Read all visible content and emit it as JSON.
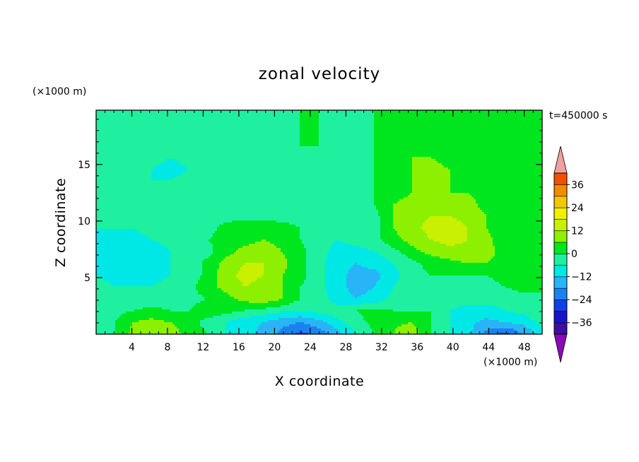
{
  "chart_data": {
    "type": "heatmap",
    "title": "zonal velocity",
    "xlabel": "X coordinate",
    "ylabel": "Z coordinate",
    "x_unit": "(×1000 m)",
    "y_unit": "(×1000 m)",
    "time_label": "t=450000 s",
    "xlim": [
      0,
      50
    ],
    "ylim": [
      0,
      19.8
    ],
    "x_ticks": [
      4,
      8,
      12,
      16,
      20,
      24,
      28,
      32,
      36,
      40,
      44,
      48
    ],
    "y_ticks": [
      5,
      10,
      15
    ],
    "colorbar": {
      "levels": [
        -42,
        -36,
        -30,
        -24,
        -18,
        -12,
        -6,
        0,
        6,
        12,
        18,
        24,
        30,
        36,
        42
      ],
      "tick_labels": [
        "36",
        "24",
        "12",
        "0",
        "−12",
        "−24",
        "−36"
      ],
      "tick_values": [
        36,
        24,
        12,
        0,
        -12,
        -24,
        -36
      ],
      "colors": [
        "#8a0ab4",
        "#3c10a0",
        "#1a14c8",
        "#1040e6",
        "#1a82f0",
        "#2ab4f8",
        "#00e8e6",
        "#1ef0a0",
        "#00e61e",
        "#8cf000",
        "#c8f000",
        "#f0f000",
        "#f0c800",
        "#f08c00",
        "#f05000",
        "#e61e1e",
        "#f0a0a0"
      ]
    },
    "field": {
      "nx": 25,
      "nz": 20,
      "values": [
        [
          -6,
          0,
          8,
          12,
          9,
          4,
          0,
          -6,
          -10,
          -14,
          -20,
          -26,
          -22,
          -14,
          -6,
          0,
          6,
          10,
          0,
          -6,
          -10,
          -20,
          -26,
          -18,
          -8
        ],
        [
          -6,
          0,
          6,
          8,
          6,
          2,
          -2,
          -6,
          -10,
          -12,
          -16,
          -18,
          -14,
          -8,
          -2,
          2,
          5,
          6,
          0,
          -6,
          -10,
          -14,
          -12,
          -10,
          -4
        ],
        [
          -4,
          -2,
          0,
          2,
          0,
          0,
          4,
          2,
          0,
          -2,
          -4,
          -6,
          -4,
          -2,
          0,
          2,
          0,
          0,
          0,
          -6,
          -8,
          -8,
          -6,
          -4,
          0
        ],
        [
          -2,
          -4,
          -4,
          -4,
          -4,
          -2,
          0,
          4,
          8,
          10,
          6,
          0,
          -2,
          -10,
          -12,
          -10,
          -4,
          -2,
          -2,
          -4,
          -4,
          -4,
          -4,
          -2,
          0
        ],
        [
          -4,
          -6,
          -6,
          -6,
          -4,
          -2,
          4,
          8,
          12,
          10,
          6,
          0,
          -4,
          -10,
          -14,
          -12,
          -6,
          -2,
          0,
          -2,
          -2,
          -2,
          0,
          2,
          0
        ],
        [
          -6,
          -8,
          -8,
          -8,
          -6,
          -4,
          2,
          10,
          14,
          12,
          6,
          2,
          -4,
          -10,
          -14,
          -14,
          -8,
          -2,
          0,
          0,
          0,
          0,
          2,
          2,
          0
        ],
        [
          -8,
          -10,
          -10,
          -10,
          -6,
          -4,
          2,
          8,
          12,
          12,
          8,
          2,
          -4,
          -10,
          -12,
          -10,
          -6,
          -2,
          2,
          4,
          6,
          6,
          4,
          2,
          0
        ],
        [
          -8,
          -10,
          -10,
          -10,
          -6,
          -4,
          -2,
          4,
          8,
          10,
          6,
          2,
          -4,
          -8,
          -8,
          -6,
          -2,
          4,
          8,
          10,
          10,
          8,
          4,
          2,
          0
        ],
        [
          -8,
          -8,
          -8,
          -6,
          -4,
          -2,
          0,
          2,
          4,
          6,
          4,
          0,
          -4,
          -6,
          -4,
          -2,
          4,
          8,
          12,
          14,
          12,
          8,
          2,
          0,
          0
        ],
        [
          -6,
          -6,
          -6,
          -4,
          -4,
          -2,
          -2,
          2,
          4,
          4,
          2,
          0,
          -4,
          -4,
          -2,
          -2,
          6,
          10,
          14,
          16,
          12,
          6,
          2,
          0,
          0
        ],
        [
          -6,
          -6,
          -4,
          -4,
          -4,
          -2,
          -2,
          -2,
          -2,
          -2,
          -2,
          -2,
          -4,
          -4,
          -4,
          -2,
          6,
          10,
          12,
          12,
          10,
          6,
          2,
          0,
          0
        ],
        [
          -4,
          -4,
          -4,
          -4,
          -4,
          -4,
          -4,
          -4,
          -4,
          -4,
          -2,
          -2,
          -4,
          -4,
          -4,
          0,
          6,
          8,
          10,
          10,
          8,
          4,
          2,
          0,
          0
        ],
        [
          -4,
          -4,
          -4,
          -6,
          -6,
          -4,
          -4,
          -4,
          -4,
          -2,
          -2,
          -2,
          -4,
          -4,
          -4,
          0,
          4,
          6,
          6,
          6,
          6,
          4,
          2,
          0,
          0
        ],
        [
          -4,
          -4,
          -6,
          -6,
          -6,
          -4,
          -4,
          -4,
          -2,
          -2,
          -2,
          0,
          -2,
          -2,
          -2,
          0,
          4,
          6,
          8,
          6,
          4,
          4,
          2,
          0,
          0
        ],
        [
          -4,
          -4,
          -4,
          -6,
          -8,
          -6,
          -4,
          -4,
          -2,
          -2,
          -2,
          0,
          -2,
          -2,
          -2,
          0,
          4,
          6,
          8,
          6,
          4,
          2,
          2,
          0,
          0
        ],
        [
          -4,
          -4,
          -4,
          -4,
          -6,
          -4,
          -4,
          -4,
          -4,
          -2,
          -2,
          0,
          -2,
          -2,
          -2,
          0,
          2,
          6,
          6,
          4,
          2,
          2,
          0,
          0,
          0
        ],
        [
          -4,
          -4,
          -4,
          -4,
          -4,
          -4,
          -4,
          -4,
          -4,
          -2,
          -2,
          0,
          0,
          -2,
          -2,
          0,
          2,
          4,
          4,
          2,
          2,
          0,
          0,
          0,
          0
        ],
        [
          -2,
          -4,
          -4,
          -4,
          -4,
          -4,
          -4,
          -4,
          -4,
          -2,
          -2,
          0,
          0,
          -2,
          -2,
          0,
          2,
          2,
          2,
          2,
          0,
          0,
          0,
          0,
          0
        ],
        [
          -2,
          -2,
          -4,
          -4,
          -4,
          -4,
          -4,
          -2,
          -2,
          -2,
          -2,
          0,
          0,
          -2,
          -2,
          0,
          2,
          2,
          2,
          2,
          0,
          0,
          0,
          0,
          0
        ],
        [
          -2,
          -2,
          -2,
          -4,
          -4,
          -4,
          -4,
          -2,
          -2,
          -2,
          -2,
          0,
          0,
          -2,
          -2,
          0,
          2,
          2,
          2,
          2,
          0,
          0,
          0,
          0,
          0
        ]
      ]
    }
  }
}
